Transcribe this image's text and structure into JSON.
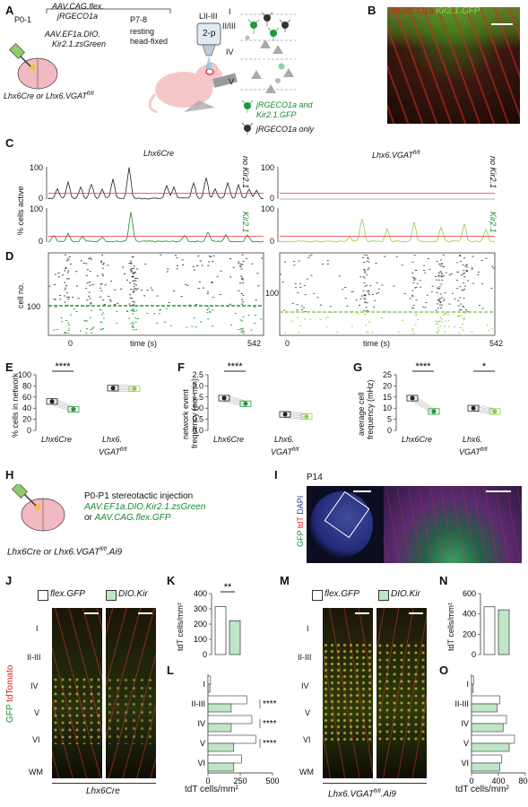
{
  "panels": {
    "A": {
      "letter": "A",
      "p0": "P0-1",
      "virus1": "AAV.CAG.flex.",
      "virus1b": "jRGECO1a",
      "virus2": "AAV.EF1a.DIO.",
      "virus2b": "Kir2.1.zsGreen",
      "p7": "P7-8",
      "state1": "resting",
      "state2": "head-fixed",
      "lii": "LII-III",
      "twop": "2-p",
      "mouse": "Lhx6Cre or Lhx6.VGAT",
      "mouse_sup": "fl/fl",
      "layers": [
        "I",
        "II/III",
        "IV",
        "V"
      ],
      "legend1a": "jRGECO1a and",
      "legend1b": "Kir2.1.GFP",
      "legend2": "jRGECO1a only"
    },
    "B": {
      "letter": "B",
      "red_label": "jRGECO1a",
      "green_label": "Kir2.1.GFP"
    },
    "C": {
      "letter": "C",
      "left_title": "Lhx6Cre",
      "right_title": "Lhx6.VGAT",
      "right_sup": "fl/fl",
      "ylabel": "% cells active",
      "tag_nokir": "no Kir2.1",
      "tag_kir": "Kir2.1"
    },
    "D": {
      "letter": "D",
      "ylabel": "cell no.",
      "xlabel": "time (s)",
      "xstart": "0",
      "xend": "542",
      "tick100": "100",
      "tag_nokir": "no Kir2.1",
      "tag_kir": "Kir2.1"
    },
    "E": {
      "letter": "E",
      "ylabel": "% cells in network",
      "sig": "****"
    },
    "F": {
      "letter": "F",
      "ylabel1": "network event",
      "ylabel2": "frequency (per min)",
      "sig": "****"
    },
    "G": {
      "letter": "G",
      "ylabel1": "average cell",
      "ylabel2": "frequency (mHz)",
      "sig1": "****",
      "sig2": "*"
    },
    "EFG_groups": {
      "g1": "Lhx6Cre",
      "g2a": "Lhx6.",
      "g2b": "VGAT",
      "g2sup": "fl/fl"
    },
    "H": {
      "letter": "H",
      "line1": "P0-P1 stereotactic injection",
      "line2": "AAV.EF1a.DIO.Kir2.1.zsGreen",
      "line3a": "or ",
      "line3b": "AAV.CAG.flex.GFP",
      "mouse": "Lhx6Cre or Lhx6.VGAT",
      "mouse_sup": "fl/fl",
      "mouse_end": ".Ai9"
    },
    "I": {
      "letter": "I",
      "age": "P14",
      "gfp": "GFP",
      "tdt": "tdT",
      "dapi": "DAPI"
    },
    "J": {
      "letter": "J",
      "caption": "Lhx6Cre",
      "vgfp": "GFP",
      "vtdt": "tdTomato"
    },
    "M": {
      "letter": "M",
      "caption": "Lhx6.VGAT",
      "cap_sup": "fl/fl",
      "cap_end": ".Ai9"
    },
    "legend_JM": {
      "flex": "flex.GFP",
      "dio": "DIO.Kir"
    },
    "layers_JM": [
      "I",
      "II-III",
      "IV",
      "V",
      "VI",
      "WM"
    ],
    "K": {
      "letter": "K",
      "ylabel": "tdT cells/mm²",
      "sig": "**"
    },
    "L": {
      "letter": "L",
      "xlabel": "tdT cells/mm²",
      "rows": [
        "I",
        "II-III",
        "IV",
        "V",
        "VI"
      ],
      "sigs": [
        "****",
        "****",
        "****"
      ]
    },
    "N": {
      "letter": "N",
      "ylabel": "tdT cells/mm²"
    },
    "O": {
      "letter": "O",
      "xlabel": "tdT cells/mm²",
      "rows": [
        "I",
        "II-III",
        "IV",
        "V",
        "VI"
      ]
    }
  },
  "chart_data": [
    {
      "panel": "C",
      "type": "line",
      "title": "Lhx6Cre",
      "ylabel": "% cells active",
      "ylim": [
        0,
        100
      ],
      "series": [
        {
          "name": "no Kir2.1",
          "color": "#222222"
        },
        {
          "name": "Kir2.1",
          "color": "#1a8a2a"
        }
      ]
    },
    {
      "panel": "E",
      "type": "scatter",
      "ylabel": "% cells in network",
      "ylim": [
        0,
        100
      ],
      "yticks": [
        0,
        20,
        40,
        60,
        80,
        100
      ],
      "categories": [
        "Lhx6Cre",
        "Lhx6.VGAT fl/fl"
      ],
      "series": [
        {
          "name": "no Kir2.1",
          "values": [
            52,
            76
          ]
        },
        {
          "name": "Kir2.1",
          "values": [
            38,
            75
          ]
        }
      ]
    },
    {
      "panel": "F",
      "type": "scatter",
      "ylabel": "network event frequency (per min)",
      "ylim": [
        0,
        2.5
      ],
      "yticks": [
        0.0,
        0.5,
        1.0,
        1.5,
        2.0,
        2.5
      ],
      "categories": [
        "Lhx6Cre",
        "Lhx6.VGAT fl/fl"
      ],
      "series": [
        {
          "name": "no Kir2.1",
          "values": [
            1.45,
            0.72
          ]
        },
        {
          "name": "Kir2.1",
          "values": [
            1.2,
            0.62
          ]
        }
      ]
    },
    {
      "panel": "G",
      "type": "scatter",
      "ylabel": "average cell frequency (mHz)",
      "ylim": [
        0,
        25
      ],
      "yticks": [
        0,
        5,
        10,
        15,
        20,
        25
      ],
      "categories": [
        "Lhx6Cre",
        "Lhx6.VGAT fl/fl"
      ],
      "series": [
        {
          "name": "no Kir2.1",
          "values": [
            14.5,
            10
          ]
        },
        {
          "name": "Kir2.1",
          "values": [
            8.5,
            8.5
          ]
        }
      ]
    },
    {
      "panel": "K",
      "type": "bar",
      "ylabel": "tdT cells/mm²",
      "ylim": [
        0,
        400
      ],
      "yticks": [
        0,
        100,
        200,
        300,
        400
      ],
      "categories": [
        "flex.GFP",
        "DIO.Kir"
      ],
      "values": [
        315,
        222
      ]
    },
    {
      "panel": "L",
      "type": "bar",
      "xlabel": "tdT cells/mm²",
      "xlim": [
        0,
        500
      ],
      "xticks": [
        0,
        250,
        500
      ],
      "categories": [
        "I",
        "II-III",
        "IV",
        "V",
        "VI"
      ],
      "series": [
        {
          "name": "flex.GFP",
          "values": [
            20,
            300,
            340,
            370,
            260
          ]
        },
        {
          "name": "DIO.Kir",
          "values": [
            15,
            180,
            180,
            200,
            200
          ]
        }
      ]
    },
    {
      "panel": "N",
      "type": "bar",
      "ylabel": "tdT cells/mm²",
      "ylim": [
        0,
        600
      ],
      "yticks": [
        0,
        200,
        400,
        600
      ],
      "categories": [
        "flex.GFP",
        "DIO.Kir"
      ],
      "values": [
        470,
        440
      ]
    },
    {
      "panel": "O",
      "type": "bar",
      "xlabel": "tdT cells/mm²",
      "xlim": [
        0,
        800
      ],
      "xticks": [
        0,
        400,
        800
      ],
      "categories": [
        "I",
        "II-III",
        "IV",
        "V",
        "VI"
      ],
      "series": [
        {
          "name": "flex.GFP",
          "values": [
            30,
            420,
            520,
            640,
            450
          ]
        },
        {
          "name": "DIO.Kir",
          "values": [
            25,
            380,
            470,
            560,
            420
          ]
        }
      ]
    }
  ]
}
